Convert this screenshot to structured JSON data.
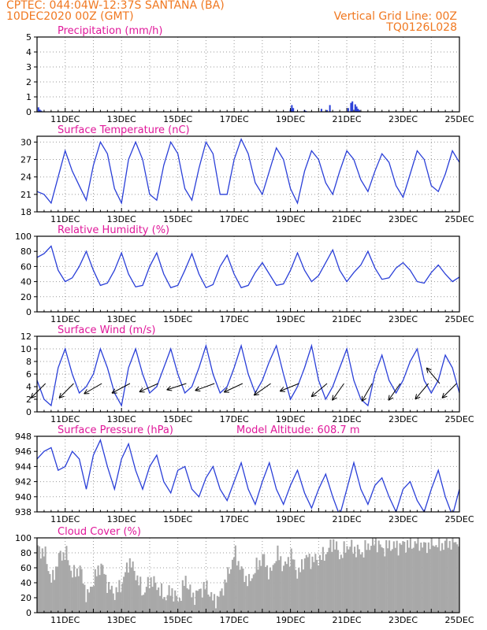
{
  "header": {
    "line1": "CPTEC:   044:04W-12:37S   SANTANA (BA)",
    "line2": "10DEC2020 00Z (GMT)",
    "vertical_grid": "Vertical Grid Line: 00Z",
    "code": "TQ0126L028"
  },
  "colors": {
    "header": "#f07820",
    "panel_title": "#e0189a",
    "series": "#2a3fd8",
    "cloud": "#a8a8a8",
    "wind_arrow": "#000000",
    "grid": "#9a9a9a"
  },
  "x_axis": {
    "start": "10DEC2020 00Z",
    "end": "25DEC2020 00Z",
    "unit": "day",
    "range": [
      0,
      15
    ],
    "ticks": [
      1,
      3,
      5,
      7,
      9,
      11,
      13,
      15
    ],
    "tick_labels": [
      "11DEC",
      "13DEC",
      "15DEC",
      "17DEC",
      "19DEC",
      "21DEC",
      "23DEC",
      "25DEC"
    ]
  },
  "chart_data": [
    {
      "type": "bar",
      "title": "Precipitation (mm/h)",
      "ylim": [
        0,
        5
      ],
      "yticks": [
        0,
        1,
        2,
        3,
        4,
        5
      ],
      "grid": true,
      "points": [
        [
          0.05,
          0.3
        ],
        [
          0.1,
          0.15
        ],
        [
          0.15,
          0.08
        ],
        [
          9.0,
          0.15
        ],
        [
          9.05,
          0.45
        ],
        [
          9.1,
          0.25
        ],
        [
          9.5,
          0.12
        ],
        [
          9.55,
          0.06
        ],
        [
          10.1,
          0.2
        ],
        [
          10.3,
          0.12
        ],
        [
          10.4,
          0.45
        ],
        [
          11.05,
          0.25
        ],
        [
          11.15,
          0.6
        ],
        [
          11.2,
          0.7
        ],
        [
          11.3,
          0.5
        ],
        [
          11.35,
          0.35
        ],
        [
          11.4,
          0.2
        ],
        [
          11.45,
          0.12
        ]
      ]
    },
    {
      "type": "line",
      "title": "Surface Temperature (nC)",
      "ylim": [
        18,
        31
      ],
      "yticks": [
        18,
        21,
        24,
        27,
        30
      ],
      "grid": true,
      "x": [
        0,
        0.25,
        0.5,
        0.75,
        1,
        1.25,
        1.5,
        1.75,
        2,
        2.25,
        2.5,
        2.75,
        3,
        3.25,
        3.5,
        3.75,
        4,
        4.25,
        4.5,
        4.75,
        5,
        5.25,
        5.5,
        5.75,
        6,
        6.25,
        6.5,
        6.75,
        7,
        7.25,
        7.5,
        7.75,
        8,
        8.25,
        8.5,
        8.75,
        9,
        9.25,
        9.5,
        9.75,
        10,
        10.25,
        10.5,
        10.75,
        11,
        11.25,
        11.5,
        11.75,
        12,
        12.25,
        12.5,
        12.75,
        13,
        13.25,
        13.5,
        13.75,
        14,
        14.25,
        14.5,
        14.75,
        15
      ],
      "values": [
        21.5,
        21,
        19.5,
        24,
        28.5,
        25,
        22.5,
        20,
        26,
        30,
        28,
        22,
        19.5,
        27,
        30,
        27,
        21,
        20,
        26,
        30,
        28,
        22,
        20,
        25.5,
        30,
        28,
        21,
        21,
        27,
        30.5,
        28,
        23,
        21,
        25,
        29,
        27,
        22,
        19.5,
        25,
        28.5,
        27,
        23,
        21,
        25,
        28.5,
        27,
        23.5,
        21.5,
        25,
        28,
        26.5,
        22.5,
        20.5,
        24.5,
        28.5,
        27,
        22.5,
        21.5,
        24.5,
        28.5,
        26.5
      ]
    },
    {
      "type": "line",
      "title": "Relative Humidity (%)",
      "ylim": [
        0,
        100
      ],
      "yticks": [
        0,
        20,
        40,
        60,
        80,
        100
      ],
      "grid": true,
      "x": [
        0,
        0.25,
        0.5,
        0.75,
        1,
        1.25,
        1.5,
        1.75,
        2,
        2.25,
        2.5,
        2.75,
        3,
        3.25,
        3.5,
        3.75,
        4,
        4.25,
        4.5,
        4.75,
        5,
        5.25,
        5.5,
        5.75,
        6,
        6.25,
        6.5,
        6.75,
        7,
        7.25,
        7.5,
        7.75,
        8,
        8.25,
        8.5,
        8.75,
        9,
        9.25,
        9.5,
        9.75,
        10,
        10.25,
        10.5,
        10.75,
        11,
        11.25,
        11.5,
        11.75,
        12,
        12.25,
        12.5,
        12.75,
        13,
        13.25,
        13.5,
        13.75,
        14,
        14.25,
        14.5,
        14.75,
        15
      ],
      "values": [
        72,
        77,
        87,
        55,
        40,
        45,
        60,
        80,
        55,
        35,
        38,
        55,
        78,
        50,
        33,
        35,
        60,
        78,
        50,
        32,
        35,
        55,
        77,
        50,
        32,
        36,
        60,
        75,
        50,
        32,
        35,
        52,
        65,
        50,
        35,
        37,
        55,
        78,
        55,
        40,
        48,
        65,
        82,
        55,
        40,
        52,
        62,
        80,
        58,
        43,
        45,
        58,
        65,
        55,
        40,
        38,
        52,
        62,
        50,
        40,
        46
      ]
    },
    {
      "type": "line",
      "title": "Surface Wind (m/s)",
      "ylim": [
        0,
        12
      ],
      "yticks": [
        0,
        2,
        4,
        6,
        8,
        10,
        12
      ],
      "grid": true,
      "x": [
        0,
        0.25,
        0.5,
        0.75,
        1,
        1.25,
        1.5,
        1.75,
        2,
        2.25,
        2.5,
        2.75,
        3,
        3.25,
        3.5,
        3.75,
        4,
        4.25,
        4.5,
        4.75,
        5,
        5.25,
        5.5,
        5.75,
        6,
        6.25,
        6.5,
        6.75,
        7,
        7.25,
        7.5,
        7.75,
        8,
        8.25,
        8.5,
        8.75,
        9,
        9.25,
        9.5,
        9.75,
        10,
        10.25,
        10.5,
        10.75,
        11,
        11.25,
        11.5,
        11.75,
        12,
        12.25,
        12.5,
        12.75,
        13,
        13.25,
        13.5,
        13.75,
        14,
        14.25,
        14.5,
        14.75,
        15
      ],
      "values": [
        5,
        2,
        1,
        7,
        10,
        6,
        3,
        4,
        6,
        10,
        7,
        3,
        1,
        7,
        10,
        6,
        3,
        4,
        7,
        10,
        6,
        3,
        4,
        7,
        10.5,
        6,
        3,
        4,
        7,
        10.5,
        6,
        3,
        5,
        8,
        10.5,
        6,
        2,
        4,
        7,
        10.5,
        5,
        2,
        4,
        7,
        10,
        5,
        2,
        1,
        6,
        9,
        5,
        3,
        5,
        8,
        10,
        5,
        3,
        5,
        9,
        7,
        3
      ],
      "arrows": [
        [
          0.3,
          45
        ],
        [
          1.3,
          45
        ],
        [
          2.3,
          30
        ],
        [
          3.3,
          28
        ],
        [
          4.3,
          24
        ],
        [
          5.3,
          18
        ],
        [
          6.3,
          20
        ],
        [
          7.3,
          25
        ],
        [
          8.3,
          35
        ],
        [
          9.3,
          22
        ],
        [
          10.3,
          40
        ],
        [
          10.9,
          55
        ],
        [
          11.9,
          60
        ],
        [
          12.9,
          55
        ],
        [
          13.9,
          50
        ],
        [
          14.3,
          -50
        ],
        [
          14.9,
          45
        ]
      ]
    },
    {
      "type": "line",
      "title": "Surface Pressure (hPa)",
      "annotation": "Model Altitude: 608.7 m",
      "ylim": [
        938,
        948
      ],
      "yticks": [
        938,
        940,
        942,
        944,
        946,
        948
      ],
      "grid": true,
      "x": [
        0,
        0.25,
        0.5,
        0.75,
        1,
        1.25,
        1.5,
        1.75,
        2,
        2.25,
        2.5,
        2.75,
        3,
        3.25,
        3.5,
        3.75,
        4,
        4.25,
        4.5,
        4.75,
        5,
        5.25,
        5.5,
        5.75,
        6,
        6.25,
        6.5,
        6.75,
        7,
        7.25,
        7.5,
        7.75,
        8,
        8.25,
        8.5,
        8.75,
        9,
        9.25,
        9.5,
        9.75,
        10,
        10.25,
        10.5,
        10.75,
        11,
        11.25,
        11.5,
        11.75,
        12,
        12.25,
        12.5,
        12.75,
        13,
        13.25,
        13.5,
        13.75,
        14,
        14.25,
        14.5,
        14.75,
        15
      ],
      "values": [
        945,
        946,
        946.5,
        943.5,
        944,
        946,
        945,
        941,
        945.5,
        947.5,
        944,
        941,
        945,
        947,
        943.5,
        941,
        944,
        945.5,
        942,
        940.5,
        943.5,
        944,
        941,
        940,
        942.5,
        944,
        941,
        939.5,
        942,
        944.5,
        941,
        939,
        942,
        944.5,
        941,
        939,
        941.5,
        943.5,
        940.5,
        938.5,
        941,
        943,
        940,
        937.5,
        941,
        944.5,
        941,
        939,
        941.5,
        942.5,
        940,
        938,
        941,
        942,
        939.5,
        938,
        941,
        943.5,
        940,
        937.5,
        941
      ]
    },
    {
      "type": "area",
      "title": "Cloud Cover (%)",
      "ylim": [
        0,
        100
      ],
      "yticks": [
        0,
        20,
        40,
        60,
        80,
        100
      ],
      "grid": true,
      "x": [
        0,
        0.25,
        0.5,
        0.75,
        1,
        1.25,
        1.5,
        1.75,
        2,
        2.25,
        2.5,
        2.75,
        3,
        3.25,
        3.5,
        3.75,
        4,
        4.25,
        4.5,
        4.75,
        5,
        5.25,
        5.5,
        5.75,
        6,
        6.25,
        6.5,
        6.75,
        7,
        7.25,
        7.5,
        7.75,
        8,
        8.25,
        8.5,
        8.75,
        9,
        9.25,
        9.5,
        9.75,
        10,
        10.25,
        10.5,
        10.75,
        11,
        11.25,
        11.5,
        11.75,
        12,
        12.25,
        12.5,
        12.75,
        13,
        13.25,
        13.5,
        13.75,
        14,
        14.25,
        14.5,
        14.75,
        15
      ],
      "values": [
        85,
        80,
        40,
        75,
        80,
        50,
        60,
        20,
        45,
        65,
        35,
        25,
        40,
        70,
        50,
        25,
        45,
        35,
        20,
        30,
        15,
        45,
        20,
        30,
        35,
        15,
        25,
        50,
        80,
        55,
        40,
        60,
        75,
        50,
        80,
        60,
        78,
        50,
        75,
        70,
        72,
        80,
        95,
        75,
        90,
        85,
        80,
        90,
        95,
        85,
        90,
        88,
        92,
        90,
        95,
        88,
        93,
        90,
        92,
        95,
        94
      ]
    }
  ]
}
